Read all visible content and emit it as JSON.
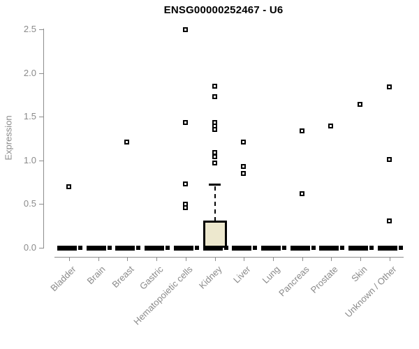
{
  "title": "ENSG00000252467 - U6",
  "y_axis_label": "Expression",
  "colors": {
    "title_color": "#000000",
    "axis_gray": "#8c8c8c",
    "label_gray": "#8a8a8a",
    "box_fill": "#ede8ce",
    "box_border": "#000000",
    "point_fill": "#ffffff",
    "point_border": "#000000"
  },
  "chart_data": {
    "type": "boxplot",
    "title": "ENSG00000252467 - U6",
    "xlabel": "",
    "ylabel": "Expression",
    "ylim": [
      0,
      2.5
    ],
    "yticks": [
      0,
      0.5,
      1,
      1.5,
      2,
      2.5
    ],
    "grid": false,
    "legend": false,
    "categories": [
      "Bladder",
      "Brain",
      "Breast",
      "Gastric",
      "Hematopoietic cells",
      "Kidney",
      "Liver",
      "Lung",
      "Pancreas",
      "Prostate",
      "Skin",
      "Unknown / Other"
    ],
    "series": [
      {
        "name": "Bladder",
        "q1": 0,
        "median": 0,
        "q3": 0,
        "whisker_low": 0,
        "whisker_high": 0,
        "outliers": [
          0.7
        ]
      },
      {
        "name": "Brain",
        "q1": 0,
        "median": 0,
        "q3": 0,
        "whisker_low": 0,
        "whisker_high": 0,
        "outliers": []
      },
      {
        "name": "Breast",
        "q1": 0,
        "median": 0,
        "q3": 0,
        "whisker_low": 0,
        "whisker_high": 0,
        "outliers": [
          1.21
        ]
      },
      {
        "name": "Gastric",
        "q1": 0,
        "median": 0,
        "q3": 0,
        "whisker_low": 0,
        "whisker_high": 0,
        "outliers": []
      },
      {
        "name": "Hematopoietic cells",
        "q1": 0,
        "median": 0,
        "q3": 0,
        "whisker_low": 0,
        "whisker_high": 0,
        "outliers": [
          2.5,
          1.43,
          0.73,
          0.5,
          0.46
        ]
      },
      {
        "name": "Kidney",
        "q1": 0,
        "median": 0,
        "q3": 0.31,
        "whisker_low": 0,
        "whisker_high": 0.72,
        "outliers": [
          1.85,
          1.73,
          1.43,
          1.39,
          1.35,
          1.09,
          1.04,
          0.97
        ]
      },
      {
        "name": "Liver",
        "q1": 0,
        "median": 0,
        "q3": 0,
        "whisker_low": 0,
        "whisker_high": 0,
        "outliers": [
          1.21,
          0.93,
          0.85
        ]
      },
      {
        "name": "Lung",
        "q1": 0,
        "median": 0,
        "q3": 0,
        "whisker_low": 0,
        "whisker_high": 0,
        "outliers": []
      },
      {
        "name": "Pancreas",
        "q1": 0,
        "median": 0,
        "q3": 0,
        "whisker_low": 0,
        "whisker_high": 0,
        "outliers": [
          1.34,
          0.62
        ]
      },
      {
        "name": "Prostate",
        "q1": 0,
        "median": 0,
        "q3": 0,
        "whisker_low": 0,
        "whisker_high": 0,
        "outliers": [
          1.39
        ]
      },
      {
        "name": "Skin",
        "q1": 0,
        "median": 0,
        "q3": 0,
        "whisker_low": 0,
        "whisker_high": 0,
        "outliers": [
          1.64
        ]
      },
      {
        "name": "Unknown / Other",
        "q1": 0,
        "median": 0,
        "q3": 0,
        "whisker_low": 0,
        "whisker_high": 0,
        "outliers": [
          1.84,
          1.01,
          0.31
        ]
      }
    ]
  }
}
